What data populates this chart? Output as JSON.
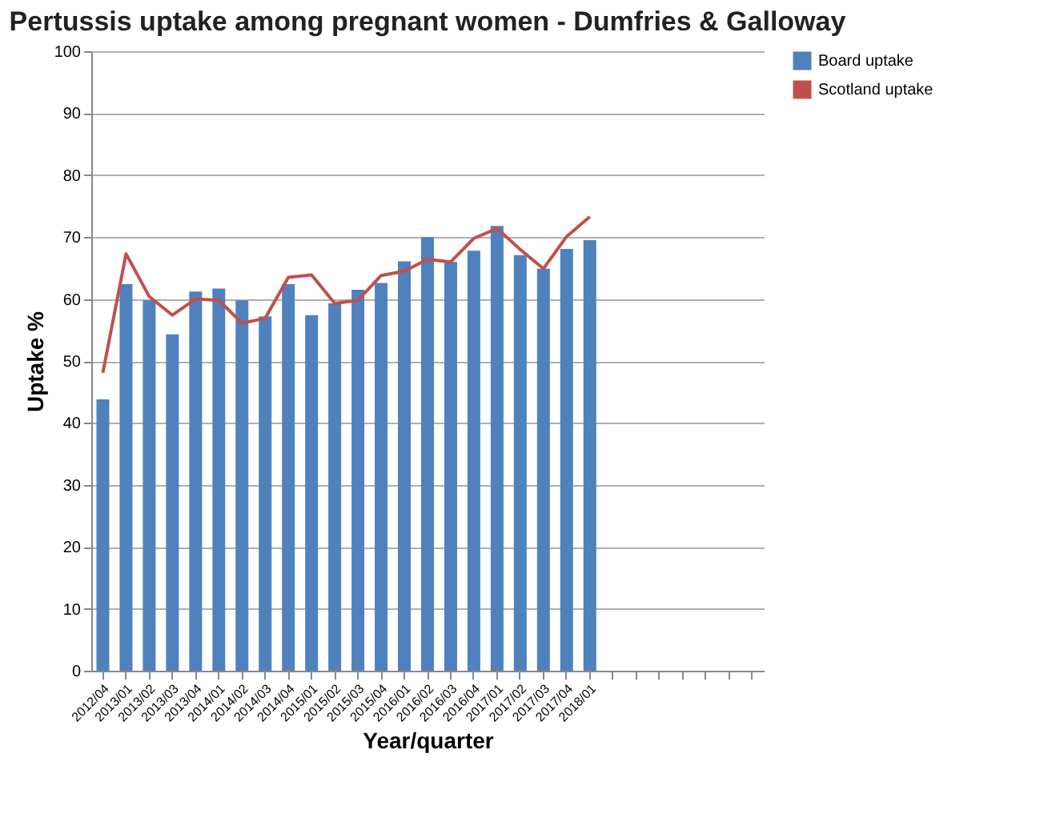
{
  "chart_data": {
    "type": "bar",
    "title": "Pertussis uptake among pregnant women - Dumfries & Galloway",
    "xlabel": "Year/quarter",
    "ylabel": "Uptake %",
    "categories": [
      "2012/04",
      "2013/01",
      "2013/02",
      "2013/03",
      "2013/04",
      "2014/01",
      "2014/02",
      "2014/03",
      "2014/04",
      "2015/01",
      "2015/02",
      "2015/03",
      "2015/04",
      "2016/01",
      "2016/02",
      "2016/03",
      "2016/04",
      "2017/01",
      "2017/02",
      "2017/03",
      "2017/04",
      "2018/01",
      null,
      null,
      null,
      null,
      null,
      null,
      null
    ],
    "series": [
      {
        "name": "Board uptake",
        "color": "#4f81bd",
        "values": [
          43.8,
          62.4,
          59.8,
          54.3,
          61.2,
          61.7,
          59.8,
          57.2,
          62.4,
          57.4,
          59.3,
          61.5,
          62.6,
          66.1,
          70,
          66,
          67.8,
          71.8,
          67.1,
          64.9,
          68.1,
          69.5,
          null,
          null,
          null,
          null,
          null,
          null,
          null
        ]
      },
      {
        "name": "Scotland uptake",
        "type": "line",
        "color": "#c0504d",
        "values": [
          48.1,
          67.3,
          60.4,
          57.4,
          60,
          59.8,
          56.1,
          56.9,
          63.5,
          63.9,
          59.3,
          59.8,
          63.8,
          64.5,
          66.4,
          66,
          69.8,
          71.4,
          68,
          64.9,
          70.1,
          73.3,
          null,
          null,
          null,
          null,
          null,
          null,
          null
        ]
      }
    ],
    "ylim": [
      0,
      100
    ],
    "yticks": [
      0,
      10,
      20,
      30,
      40,
      50,
      60,
      70,
      80,
      90,
      100
    ],
    "grid": "y",
    "legend": "right",
    "marker": "none",
    "line_style": "solid"
  }
}
